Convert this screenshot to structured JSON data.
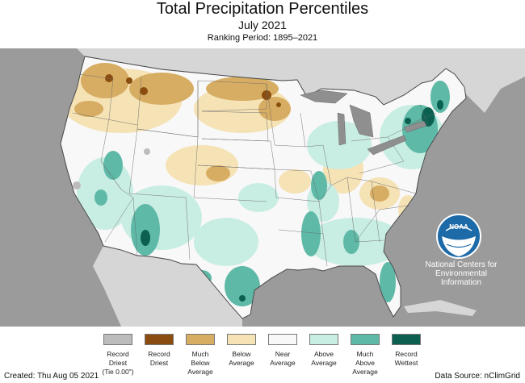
{
  "header": {
    "title": "Total Precipitation Percentiles",
    "month": "July 2021",
    "ranking_period": "Ranking Period: 1895–2021"
  },
  "legend": {
    "items": [
      {
        "line1": "Record",
        "line2": "Driest",
        "line3": "(Tie 0.00\")",
        "color": "#bcbcbc"
      },
      {
        "line1": "Record",
        "line2": "Driest",
        "line3": "",
        "color": "#8b4d0f"
      },
      {
        "line1": "Much",
        "line2": "Below",
        "line3": "Average",
        "color": "#d7ad63"
      },
      {
        "line1": "Below",
        "line2": "Average",
        "line3": "",
        "color": "#f5e2b5"
      },
      {
        "line1": "Near",
        "line2": "Average",
        "line3": "",
        "color": "#f8f8f8"
      },
      {
        "line1": "Above",
        "line2": "Average",
        "line3": "",
        "color": "#c8ede3"
      },
      {
        "line1": "Much",
        "line2": "Above",
        "line3": "Average",
        "color": "#5eb9a7"
      },
      {
        "line1": "Record",
        "line2": "Wettest",
        "line3": "",
        "color": "#0b6050"
      }
    ]
  },
  "footer": {
    "created": "Created: Thu Aug 05 2021",
    "source": "Data Source: nClimGrid"
  },
  "logo": {
    "letters": "NOAA",
    "org_line1": "National Centers for",
    "org_line2": "Environmental",
    "org_line3": "Information"
  },
  "colors": {
    "ocean": "#9b9b9b",
    "foreign_land": "#d6d6d6",
    "lakes": "#8f8f8f",
    "noaa_blue": "#1d6aa8"
  }
}
